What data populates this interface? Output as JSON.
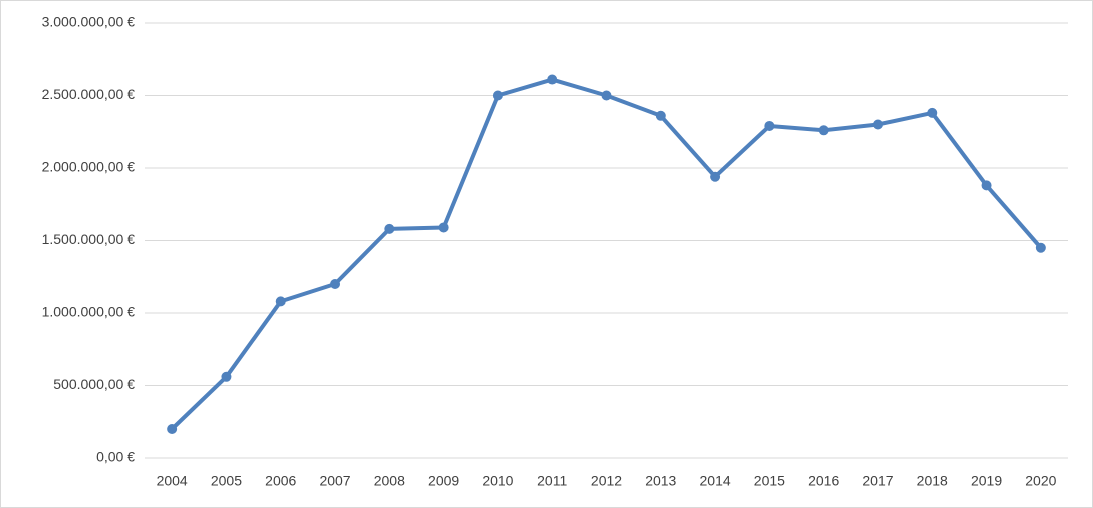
{
  "chart_data": {
    "type": "line",
    "categories": [
      "2004",
      "2005",
      "2006",
      "2007",
      "2008",
      "2009",
      "2010",
      "2011",
      "2012",
      "2013",
      "2014",
      "2015",
      "2016",
      "2017",
      "2018",
      "2019",
      "2020"
    ],
    "series": [
      {
        "color": "#4f81bd",
        "values": [
          200000,
          560000,
          1080000,
          1200000,
          1580000,
          1590000,
          2500000,
          2610000,
          2500000,
          2360000,
          1940000,
          2290000,
          2260000,
          2300000,
          2380000,
          1880000,
          1450000
        ]
      }
    ],
    "ylim": [
      0,
      3000000
    ],
    "yticks": [
      {
        "value": 0,
        "label": "0,00 €"
      },
      {
        "value": 500000,
        "label": "500.000,00 €"
      },
      {
        "value": 1000000,
        "label": "1.000.000,00 €"
      },
      {
        "value": 1500000,
        "label": "1.500.000,00 €"
      },
      {
        "value": 2000000,
        "label": "2.000.000,00 €"
      },
      {
        "value": 2500000,
        "label": "2.500.000,00 €"
      },
      {
        "value": 3000000,
        "label": "3.000.000,00 €"
      }
    ],
    "grid": true
  }
}
